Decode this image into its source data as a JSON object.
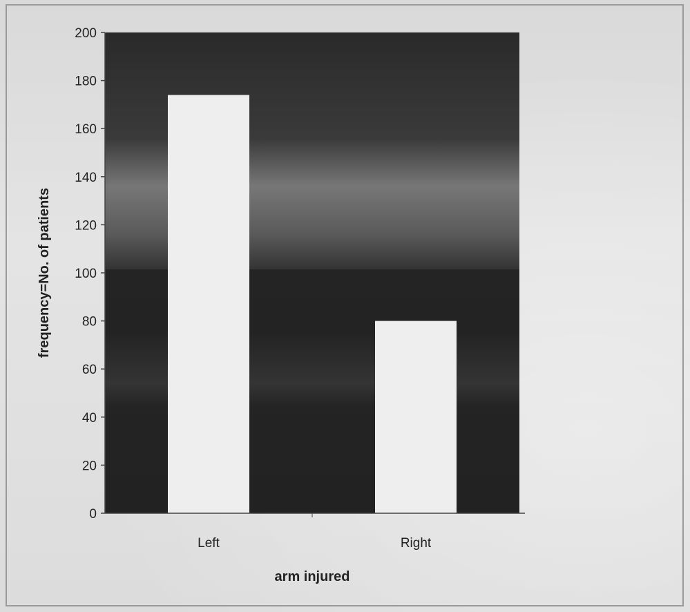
{
  "chart_data": {
    "type": "bar",
    "categories": [
      "Left",
      "Right"
    ],
    "values": [
      174,
      80
    ],
    "title": "",
    "xlabel": "arm injured",
    "ylabel": "frequency=No. of patients",
    "ylim": [
      0,
      200
    ],
    "yticks": [
      "0",
      "20",
      "40",
      "60",
      "80",
      "100",
      "120",
      "140",
      "160",
      "180",
      "200"
    ],
    "grid": false,
    "legend": "none",
    "colors": {
      "plot_background": "#1f1f1f",
      "bar": "#eeeeee",
      "axis": "#444444"
    }
  }
}
